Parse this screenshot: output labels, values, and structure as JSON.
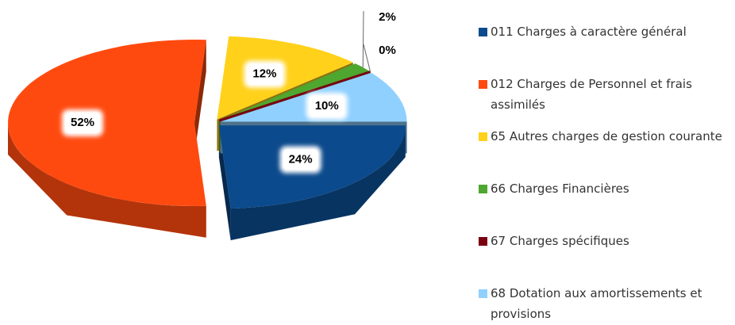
{
  "chart_data": {
    "type": "pie",
    "categories": [
      "011 Charges à caractère général",
      "012 Charges de Personnel et frais assimilés",
      "65 Autres charges de gestion courante",
      "66 Charges Financières",
      "67 Charges spécifiques",
      "68 Dotation aux amortissements et provisions"
    ],
    "values": [
      24,
      52,
      12,
      2,
      0,
      10
    ],
    "value_labels": [
      "24%",
      "52%",
      "12%",
      "2%",
      "0%",
      "10%"
    ],
    "colors": [
      "#0b4a8c",
      "#ff4a0f",
      "#ffd11a",
      "#4ea72e",
      "#7a0010",
      "#8fd0ff"
    ],
    "legend": "right"
  }
}
